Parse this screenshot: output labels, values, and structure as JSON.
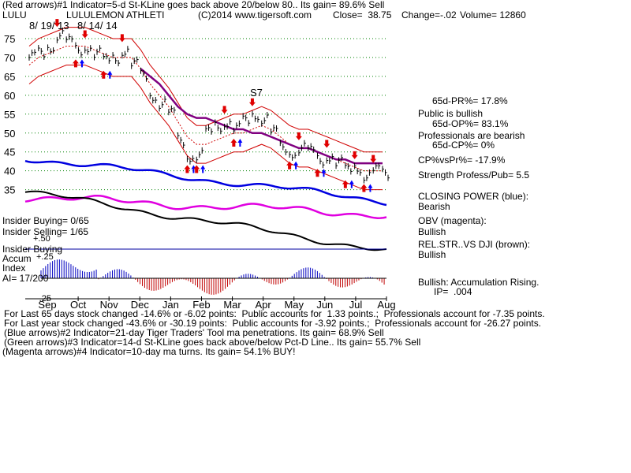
{
  "header": {
    "line1": "(Red arrows)#1 Indicator=5-d St-KLine goes back above 20/below 80.. Its gain= 89.6% Sell",
    "ticker": "LULU",
    "company": "LULULEMON ATHLETI",
    "site": "(C)2014 www.tigersoft.com",
    "close": "Close=  38.75",
    "change": "Change=-.02",
    "volume": "Volume= 12860"
  },
  "annotations": {
    "peak1": "8/ 19/ 13",
    "peak2": "8/ 14/ 14",
    "s7": "S7"
  },
  "right_panel": {
    "pr65": "65d-PR%= 17.8%",
    "public_bullish": "Public is bullish",
    "op65": "65d-OP%= 83.1%",
    "prof_bearish": "Professionals are bearish",
    "cp65": "65d-CP%= 0%",
    "cpvspr": "CP%vsPr%= -17.9%",
    "strength": "Strength Profess/Pub= 5.5",
    "closing_power_label": "CLOSING POWER (blue):",
    "closing_power_value": "Bearish",
    "obv_label": "OBV (magenta):",
    "obv_value": "Bullish",
    "relstr_label": "REL.STR..VS DJI (brown):",
    "relstr_value": "Bullish",
    "accum_label": "Bullish: Accumulation Rising.",
    "ip_label": "IP=  .004"
  },
  "left_panel": {
    "insider_buying": "Insider Buying= 0/65",
    "insider_selling": "Insider Selling= 1/65",
    "insider_buying2": "Insider Buying",
    "accum": "Accum",
    "index": "Index",
    "ai": "AI= 17/200",
    "plus25": "+.25",
    "plus50": "+.50",
    "minus25": "-.25"
  },
  "footer": {
    "line1": "For Last 65 days stock changed -14.6% or -6.02 points:  Public accounts for  1.33 points.;  Professionals account for -7.35 points.",
    "line2": "For Last year stock changed -43.6% or -30.19 points:  Public accounts for -3.92 points.;  Professionals account for -26.27 points.",
    "line3": "(Blue arrows)#2 Indicator=21-day Tiger Traders' Tool ma penetrations. Its gain= 68.9% Sell",
    "line4": "(Green arrows)#3 Indicator=14-d St-KLine goes back above/below Pct-D Line.. Its gain= 55.7% Sell",
    "line5": "(Magenta arrows)#4 Indicator=10-day ma turns. Its gain= 54.1% BUY!"
  },
  "colors": {
    "price": "#000000",
    "ma_upper_band": "#d00000",
    "ma_purple": "#800080",
    "closing_power": "#0000e0",
    "obv": "#e000e0",
    "relstr": "#000000",
    "accum_pos": "#0000c0",
    "accum_neg": "#c00000",
    "grid": "#008000",
    "red_arrow": "#e00000",
    "blue_arrow": "#0000ff"
  },
  "chart_data": {
    "type": "line",
    "title": "LULULEMON ATHLETI",
    "x_tick_labels": [
      "Sep",
      "Oct",
      "Nov",
      "Dec",
      "Jan",
      "Feb",
      "Mar",
      "Apr",
      "May",
      "Jun",
      "Jul",
      "Aug"
    ],
    "y_tick_labels": [
      "75",
      "70",
      "65",
      "60",
      "55",
      "50",
      "45",
      "40",
      "35"
    ],
    "ylim": [
      32,
      80
    ],
    "grid": true,
    "series": [
      {
        "name": "price",
        "values": [
          70,
          71,
          73,
          76,
          74,
          72,
          73,
          71,
          69,
          70,
          72,
          68,
          65,
          60,
          58,
          55,
          48,
          44,
          44,
          50,
          52,
          53,
          51,
          53,
          55,
          54,
          50,
          46,
          45,
          46,
          45,
          43,
          44,
          42,
          40,
          41,
          39,
          40,
          39
        ]
      },
      {
        "name": "ma21",
        "values": [
          68,
          70,
          71,
          72,
          73,
          73,
          73,
          72,
          71,
          70,
          70,
          70,
          67,
          63,
          60,
          57,
          53,
          49,
          47,
          47,
          48,
          49,
          50,
          50,
          51,
          52,
          51,
          49,
          47,
          46,
          46,
          45,
          44,
          43,
          42,
          41,
          40,
          40,
          40
        ]
      },
      {
        "name": "ma_purple",
        "values": [
          null,
          null,
          null,
          null,
          null,
          null,
          null,
          null,
          null,
          null,
          null,
          null,
          67,
          65,
          63,
          60,
          57,
          55,
          54,
          54,
          53,
          52,
          51,
          51,
          50,
          50,
          49,
          48,
          47,
          46,
          46,
          45,
          44,
          43,
          43,
          42,
          42,
          42,
          42
        ]
      }
    ]
  }
}
